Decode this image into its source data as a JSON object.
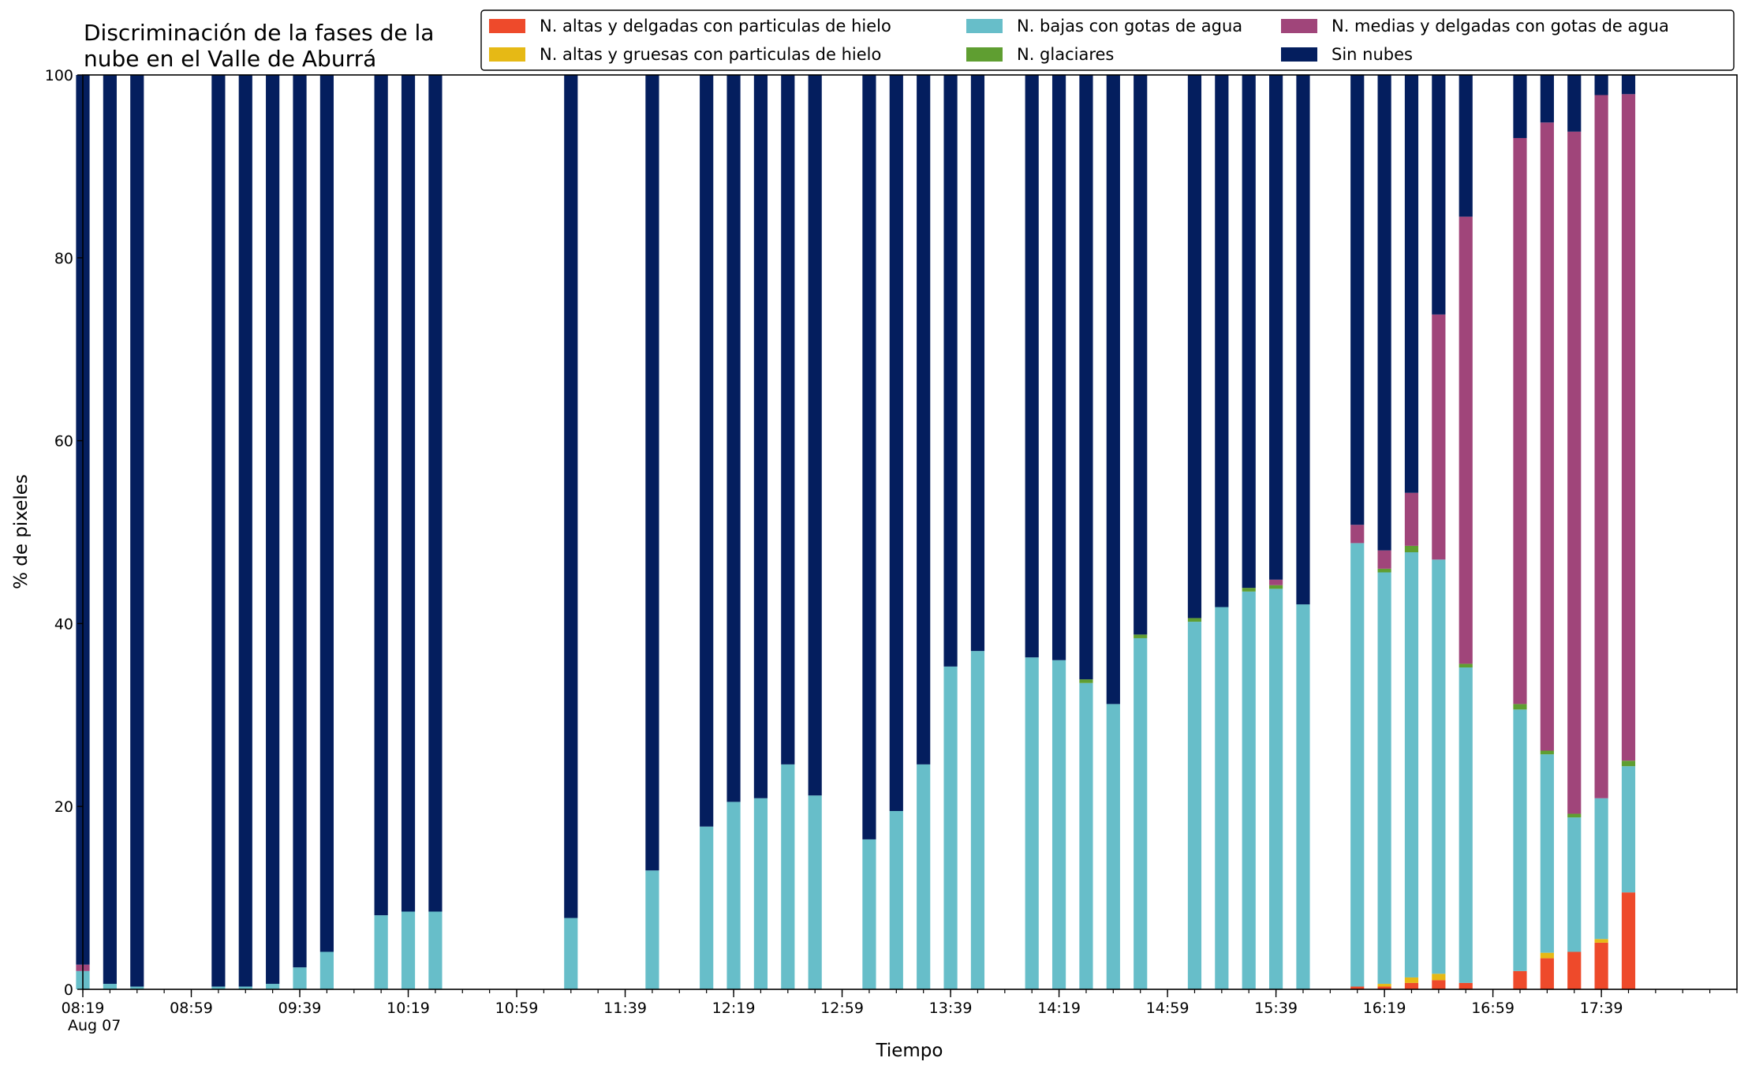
{
  "chart_data": {
    "type": "bar",
    "stacked": true,
    "title_lines": [
      "Discriminación de la fases de la",
      "nube en el Valle de Aburrá"
    ],
    "xlabel": "Tiempo",
    "ylabel": "% de pixeles",
    "ylim": [
      0,
      100
    ],
    "yticks": [
      0,
      20,
      40,
      60,
      80,
      100
    ],
    "x_first_label": "08:19",
    "x_date_label": "Aug 07",
    "x_tick_labels": [
      "08:19",
      "08:59",
      "09:39",
      "10:19",
      "10:59",
      "11:39",
      "12:19",
      "12:59",
      "13:39",
      "14:19",
      "14:59",
      "15:39",
      "16:19",
      "16:59",
      "17:39"
    ],
    "time_step_minutes": 10,
    "minor_tick_minutes": 10,
    "x_range_times": [
      "08:19",
      "18:29"
    ],
    "legend_position": "top-right",
    "grid": false,
    "times": [
      "08:19",
      "08:29",
      "08:39",
      "09:09",
      "09:19",
      "09:29",
      "09:39",
      "09:49",
      "10:09",
      "10:19",
      "10:29",
      "11:19",
      "11:49",
      "12:09",
      "12:19",
      "12:29",
      "12:39",
      "12:49",
      "13:09",
      "13:19",
      "13:29",
      "13:39",
      "13:49",
      "14:09",
      "14:19",
      "14:29",
      "14:39",
      "14:49",
      "15:09",
      "15:19",
      "15:29",
      "15:39",
      "15:49",
      "16:09",
      "16:19",
      "16:29",
      "16:39",
      "16:49",
      "17:09",
      "17:19",
      "17:29",
      "17:39",
      "17:49"
    ],
    "series": [
      {
        "name": "N. altas y delgadas con particulas de hielo",
        "color": "#ee4a2b",
        "values": [
          0,
          0,
          0,
          0,
          0,
          0,
          0,
          0,
          0,
          0,
          0,
          0,
          0,
          0,
          0,
          0,
          0,
          0,
          0,
          0,
          0,
          0,
          0,
          0,
          0,
          0,
          0,
          0,
          0,
          0,
          0,
          0,
          0,
          0.3,
          0.3,
          0.7,
          1.0,
          0.7,
          2.0,
          3.4,
          4.1,
          5.1,
          10.6
        ]
      },
      {
        "name": "N. altas y gruesas con particulas de hielo",
        "color": "#e6b915",
        "values": [
          0,
          0,
          0,
          0,
          0,
          0,
          0,
          0,
          0,
          0,
          0,
          0,
          0,
          0,
          0,
          0,
          0,
          0,
          0,
          0,
          0,
          0,
          0,
          0,
          0,
          0,
          0,
          0,
          0,
          0,
          0,
          0,
          0,
          0,
          0.3,
          0.6,
          0.7,
          0,
          0,
          0.6,
          0,
          0.4,
          0
        ]
      },
      {
        "name": "N. bajas con gotas de agua",
        "color": "#67bec9",
        "values": [
          2.0,
          0.6,
          0.3,
          0.3,
          0.3,
          0.6,
          2.4,
          4.1,
          8.1,
          8.5,
          8.5,
          7.8,
          13.0,
          17.8,
          20.5,
          20.9,
          24.6,
          21.2,
          16.4,
          19.5,
          24.6,
          35.3,
          37.0,
          36.3,
          36.0,
          33.5,
          31.2,
          38.4,
          40.2,
          41.8,
          43.5,
          43.8,
          42.1,
          48.5,
          45.0,
          46.5,
          45.3,
          34.5,
          28.6,
          21.7,
          14.7,
          15.4,
          13.8
        ]
      },
      {
        "name": "N. glaciares",
        "color": "#5f9e31",
        "values": [
          0,
          0,
          0,
          0,
          0,
          0,
          0,
          0,
          0,
          0,
          0,
          0,
          0,
          0,
          0,
          0,
          0,
          0,
          0,
          0,
          0,
          0,
          0,
          0,
          0,
          0.4,
          0,
          0.4,
          0.4,
          0,
          0.4,
          0.4,
          0,
          0,
          0.4,
          0.7,
          0,
          0.4,
          0.6,
          0.4,
          0.4,
          0,
          0.6
        ]
      },
      {
        "name": "N. medias y delgadas con gotas de agua",
        "color": "#a0457a",
        "values": [
          0.7,
          0,
          0,
          0,
          0,
          0,
          0,
          0,
          0,
          0,
          0,
          0,
          0,
          0,
          0,
          0,
          0,
          0,
          0,
          0,
          0,
          0,
          0,
          0,
          0,
          0,
          0,
          0,
          0,
          0,
          0,
          0.6,
          0,
          2.0,
          2.0,
          5.8,
          26.8,
          48.9,
          61.9,
          68.7,
          74.6,
          76.9,
          72.9
        ]
      },
      {
        "name": "Sin nubes",
        "color": "#041e5e",
        "values": [
          97.3,
          99.4,
          99.7,
          99.7,
          99.7,
          99.4,
          97.6,
          95.9,
          91.9,
          91.5,
          91.5,
          92.2,
          87.0,
          82.2,
          79.5,
          79.1,
          75.4,
          78.8,
          83.6,
          80.5,
          75.4,
          64.7,
          63.0,
          63.7,
          64.0,
          66.1,
          68.8,
          61.2,
          59.4,
          58.2,
          56.1,
          55.2,
          57.9,
          49.2,
          52.0,
          45.7,
          26.2,
          15.5,
          6.9,
          5.2,
          6.2,
          2.2,
          2.1
        ]
      }
    ],
    "legend_entries": [
      {
        "label": "N. altas y delgadas con particulas de hielo",
        "color": "#ee4a2b"
      },
      {
        "label": "N. bajas con gotas de agua",
        "color": "#67bec9"
      },
      {
        "label": "N. medias y delgadas con gotas de agua",
        "color": "#a0457a"
      },
      {
        "label": "N. altas y gruesas con particulas de hielo",
        "color": "#e6b915"
      },
      {
        "label": "N. glaciares",
        "color": "#5f9e31"
      },
      {
        "label": "Sin nubes",
        "color": "#041e5e"
      }
    ]
  }
}
